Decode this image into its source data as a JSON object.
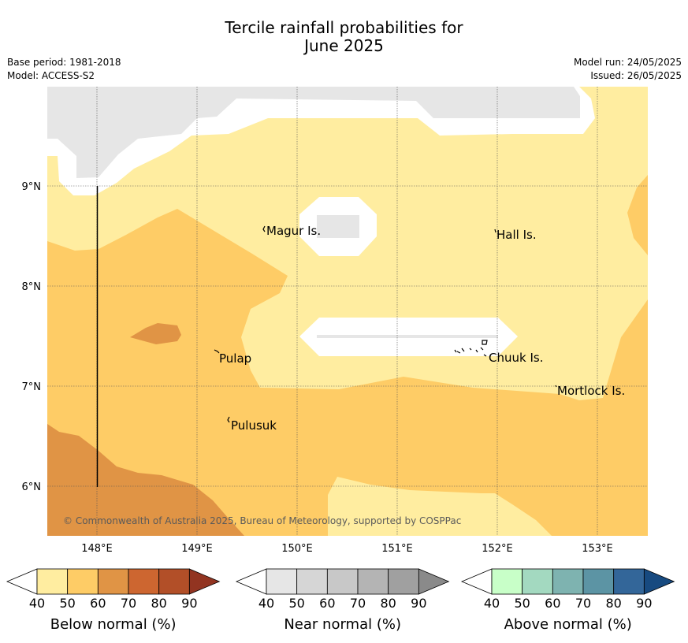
{
  "header": {
    "title_line1": "Tercile rainfall probabilities for",
    "title_line2": "June 2025",
    "base_period": "Base period: 1981-2018",
    "model": "Model: ACCESS-S2",
    "model_run": "Model run: 24/05/2025",
    "issued": "Issued: 26/05/2025"
  },
  "map": {
    "x_ticks": [
      "148°E",
      "149°E",
      "150°E",
      "151°E",
      "152°E",
      "153°E"
    ],
    "y_ticks": [
      "9°N",
      "8°N",
      "7°N",
      "6°N"
    ],
    "places": [
      {
        "name": "Magur Is."
      },
      {
        "name": "Hall Is."
      },
      {
        "name": "Pulap"
      },
      {
        "name": "Chuuk Is."
      },
      {
        "name": "Mortlock Is."
      },
      {
        "name": "Pulusuk"
      }
    ],
    "copyright": "© Commonwealth of Australia 2025, Bureau of Meteorology, supported by COSPPac"
  },
  "colorbars": [
    {
      "title": "Below normal (%)",
      "ticks": [
        "40",
        "50",
        "60",
        "70",
        "80",
        "90"
      ],
      "colors": [
        "#ffffff",
        "#ffeda0",
        "#fecc66",
        "#e09445",
        "#cd6630",
        "#b24f28",
        "#923421"
      ]
    },
    {
      "title": "Near normal (%)",
      "ticks": [
        "40",
        "50",
        "60",
        "70",
        "80",
        "90"
      ],
      "colors": [
        "#ffffff",
        "#e6e6e6",
        "#d6d6d6",
        "#c8c8c8",
        "#b4b4b4",
        "#a0a0a0",
        "#8a8a8a"
      ]
    },
    {
      "title": "Above normal (%)",
      "ticks": [
        "40",
        "50",
        "60",
        "70",
        "80",
        "90"
      ],
      "colors": [
        "#ffffff",
        "#c8ffc8",
        "#a3d9c0",
        "#7eb3b0",
        "#5c94a4",
        "#336699",
        "#174a80"
      ]
    }
  ]
}
